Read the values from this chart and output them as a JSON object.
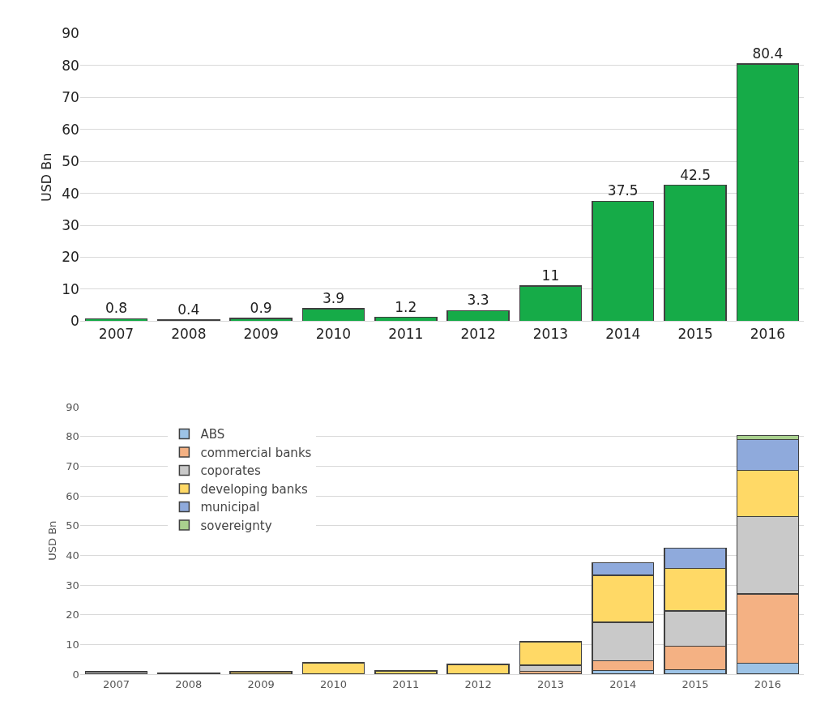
{
  "chart_data": [
    {
      "type": "bar",
      "ylabel": "USD Bn",
      "categories": [
        "2007",
        "2008",
        "2009",
        "2010",
        "2011",
        "2012",
        "2013",
        "2014",
        "2015",
        "2016"
      ],
      "values": [
        0.8,
        0.4,
        0.9,
        3.9,
        1.2,
        3.3,
        11,
        37.5,
        42.5,
        80.4
      ],
      "color": "#16ab48",
      "data_labels": true,
      "ylim": [
        0,
        90
      ],
      "yticks": [
        0,
        10,
        20,
        30,
        40,
        50,
        60,
        70,
        80,
        90
      ],
      "grid": "y"
    },
    {
      "type": "bar",
      "ylabel": "USD Bn",
      "categories": [
        "2007",
        "2008",
        "2009",
        "2010",
        "2011",
        "2012",
        "2013",
        "2014",
        "2015",
        "2016"
      ],
      "stacked": true,
      "series": [
        {
          "name": "ABS",
          "color": "#9dc3e6",
          "values": [
            null,
            null,
            null,
            null,
            null,
            null,
            null,
            1.3,
            1.5,
            3.7
          ]
        },
        {
          "name": "commercial banks",
          "color": "#f4b183",
          "values": [
            null,
            null,
            null,
            null,
            null,
            null,
            1.0,
            3.3,
            8.0,
            23.3
          ]
        },
        {
          "name": "coporates",
          "color": "#c9c9c9",
          "values": [
            0.8,
            0.4,
            null,
            null,
            null,
            null,
            2.0,
            12.9,
            11.8,
            26.1
          ]
        },
        {
          "name": "developing banks",
          "color": "#ffd966",
          "values": [
            null,
            null,
            0.9,
            3.9,
            1.2,
            3.3,
            8.0,
            15.8,
            14.4,
            15.5
          ]
        },
        {
          "name": "municipal",
          "color": "#8faadc",
          "values": [
            null,
            null,
            null,
            null,
            null,
            null,
            null,
            4.2,
            6.8,
            10.4
          ]
        },
        {
          "name": "sovereignty",
          "color": "#a9d18e",
          "values": [
            null,
            null,
            null,
            null,
            null,
            null,
            null,
            null,
            null,
            1.4
          ]
        }
      ],
      "legend": "top left",
      "ylim": [
        0,
        90
      ],
      "yticks": [
        0,
        10,
        20,
        30,
        40,
        50,
        60,
        70,
        80,
        90
      ],
      "grid": "y"
    }
  ]
}
